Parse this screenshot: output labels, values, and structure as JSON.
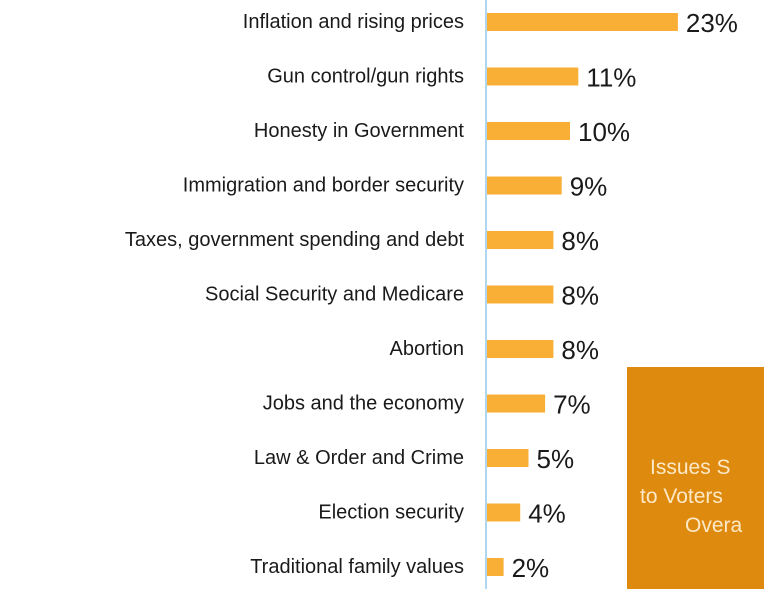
{
  "chart_data": {
    "type": "bar",
    "orientation": "horizontal",
    "categories": [
      "Inflation and rising prices",
      "Gun control/gun rights",
      "Honesty in Government",
      "Immigration and border security",
      "Taxes, government spending and debt",
      "Social Security and Medicare",
      "Abortion",
      "Jobs and the economy",
      "Law & Order and Crime",
      "Election security",
      "Traditional family values"
    ],
    "values": [
      23,
      11,
      10,
      9,
      8,
      8,
      8,
      7,
      5,
      4,
      2
    ],
    "value_labels": [
      "23%",
      "11%",
      "10%",
      "9%",
      "8%",
      "8%",
      "8%",
      "7%",
      "5%",
      "4%",
      "2%"
    ],
    "unit": "%",
    "title": "",
    "xlabel": "",
    "ylabel": "",
    "grid": false,
    "colors": {
      "bar": "#f9ae36",
      "axis": "#aed6ee",
      "text": "#1a1a1a"
    }
  },
  "overlay": {
    "line1": "Issues S",
    "line2": "to Voters",
    "line3": "Overa",
    "background": "#de8a0e",
    "text_color": "#fde9c8"
  }
}
